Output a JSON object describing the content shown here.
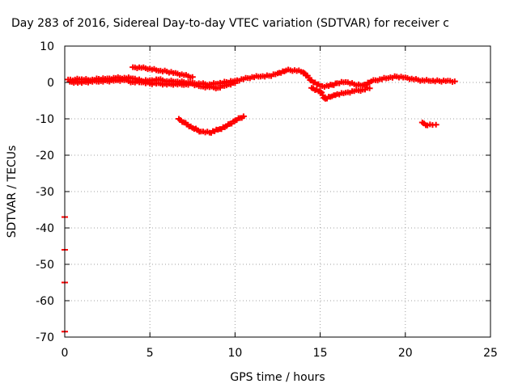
{
  "chart_data": {
    "type": "scatter",
    "title": "Day 283 of 2016, Sidereal Day-to-day VTEC variation (SDTVAR) for receiver c",
    "xlabel": "GPS time / hours",
    "ylabel": "SDTVAR / TECUs",
    "xlim": [
      0,
      25
    ],
    "ylim": [
      -70,
      10
    ],
    "xticks": [
      "0",
      "5",
      "10",
      "15",
      "20",
      "25"
    ],
    "yticks": [
      "10",
      "0",
      "-10",
      "-20",
      "-30",
      "-40",
      "-50",
      "-60",
      "-70"
    ],
    "grid": true,
    "legend": "none",
    "color": "#ff0000",
    "series": [
      {
        "points": [
          [
            0.2,
            0.8
          ],
          [
            0.6,
            0.8
          ],
          [
            1.0,
            0.9
          ],
          [
            1.5,
            0.6
          ],
          [
            2.0,
            1.0
          ],
          [
            2.5,
            1.1
          ],
          [
            3.0,
            1.2
          ],
          [
            3.5,
            1.3
          ],
          [
            4.0,
            1.1
          ],
          [
            4.5,
            0.5
          ],
          [
            5.0,
            0.6
          ],
          [
            5.5,
            0.8
          ],
          [
            6.0,
            0.4
          ],
          [
            6.5,
            0.2
          ],
          [
            7.0,
            0.1
          ],
          [
            7.5,
            -0.1
          ],
          [
            8.0,
            -0.4
          ],
          [
            8.5,
            -0.5
          ],
          [
            9.0,
            -0.3
          ],
          [
            9.5,
            0.1
          ],
          [
            10.0,
            0.5
          ],
          [
            10.5,
            0.9
          ],
          [
            11.0,
            1.5
          ],
          [
            11.5,
            1.6
          ],
          [
            12.0,
            1.8
          ],
          [
            12.5,
            2.5
          ],
          [
            13.0,
            3.3
          ],
          [
            13.5,
            3.4
          ],
          [
            14.0,
            2.8
          ],
          [
            14.5,
            0.5
          ],
          [
            15.0,
            -1.0
          ],
          [
            15.5,
            -1.0
          ],
          [
            16.0,
            -0.2
          ],
          [
            16.5,
            0.1
          ],
          [
            17.0,
            -0.5
          ],
          [
            17.5,
            -0.8
          ],
          [
            18.0,
            0.3
          ],
          [
            18.5,
            0.9
          ],
          [
            19.0,
            1.2
          ],
          [
            19.5,
            1.6
          ],
          [
            20.0,
            1.4
          ],
          [
            20.5,
            0.8
          ],
          [
            21.0,
            0.6
          ],
          [
            21.5,
            0.4
          ],
          [
            22.0,
            0.4
          ],
          [
            22.5,
            0.5
          ],
          [
            22.9,
            0.3
          ]
        ]
      },
      {
        "points": [
          [
            0.3,
            0.2
          ],
          [
            1.0,
            -0.1
          ],
          [
            1.5,
            0.3
          ],
          [
            2.0,
            0.2
          ],
          [
            2.5,
            0.4
          ],
          [
            3.0,
            0.6
          ],
          [
            3.5,
            0.6
          ],
          [
            4.0,
            0.1
          ],
          [
            4.5,
            0.0
          ],
          [
            5.0,
            -0.3
          ],
          [
            5.5,
            -0.2
          ],
          [
            6.0,
            -0.6
          ],
          [
            6.5,
            -0.4
          ],
          [
            7.0,
            -0.7
          ],
          [
            7.5,
            -0.4
          ],
          [
            8.0,
            -1.1
          ],
          [
            8.5,
            -1.3
          ],
          [
            9.0,
            -1.5
          ],
          [
            9.5,
            -0.8
          ],
          [
            10.0,
            -0.2
          ]
        ]
      },
      {
        "points": [
          [
            4.0,
            4.2
          ],
          [
            4.5,
            4.0
          ],
          [
            5.0,
            3.8
          ],
          [
            5.5,
            3.2
          ],
          [
            6.0,
            3.0
          ],
          [
            6.5,
            2.6
          ],
          [
            7.0,
            2.0
          ],
          [
            7.5,
            1.5
          ]
        ]
      },
      {
        "points": [
          [
            14.5,
            -1.5
          ],
          [
            15.0,
            -2.5
          ],
          [
            15.3,
            -4.5
          ],
          [
            15.7,
            -3.8
          ],
          [
            16.0,
            -3.2
          ],
          [
            16.5,
            -2.8
          ],
          [
            17.0,
            -2.4
          ],
          [
            17.5,
            -2.0
          ],
          [
            17.9,
            -1.6
          ]
        ]
      },
      {
        "points": [
          [
            6.7,
            -10.0
          ],
          [
            7.0,
            -11.0
          ],
          [
            7.5,
            -12.5
          ],
          [
            8.0,
            -13.5
          ],
          [
            8.5,
            -13.8
          ],
          [
            9.0,
            -13.0
          ],
          [
            9.5,
            -12.0
          ],
          [
            10.0,
            -10.5
          ],
          [
            10.5,
            -9.3
          ]
        ]
      },
      {
        "points": [
          [
            21.0,
            -11.0
          ],
          [
            21.3,
            -11.8
          ],
          [
            21.6,
            -11.7
          ],
          [
            21.8,
            -11.6
          ]
        ]
      },
      {
        "points": [
          [
            0.0,
            -37.0
          ],
          [
            0.0,
            -46.0
          ],
          [
            0.0,
            -55.0
          ],
          [
            0.0,
            -68.5
          ]
        ]
      }
    ]
  }
}
